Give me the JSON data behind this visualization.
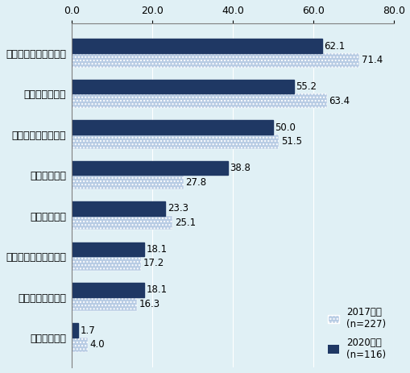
{
  "categories": [
    "賃金上昇・労働力不足",
    "品質安定・向上",
    "業務効率化・最適化",
    "熊練技術継承",
    "新製品等創出",
    "マーケティング・販売",
    "個々の顧客ニーズ",
    "参入障壁低下"
  ],
  "values_2017": [
    71.4,
    63.4,
    51.5,
    27.8,
    25.1,
    17.2,
    16.3,
    4.0
  ],
  "values_2020": [
    62.1,
    55.2,
    50.0,
    38.8,
    23.3,
    18.1,
    18.1,
    1.7
  ],
  "color_2017": "#b8cce4",
  "color_2020": "#1f3864",
  "background_color": "#e0f0f5",
  "xlim": [
    0,
    80
  ],
  "xticks": [
    0.0,
    20.0,
    40.0,
    60.0,
    80.0
  ],
  "legend_2017": "2017年度\n(n=227)",
  "legend_2020": "2020年度\n(n=116)",
  "bar_height": 0.35,
  "label_fontsize": 9,
  "tick_fontsize": 9,
  "value_fontsize": 8.5
}
